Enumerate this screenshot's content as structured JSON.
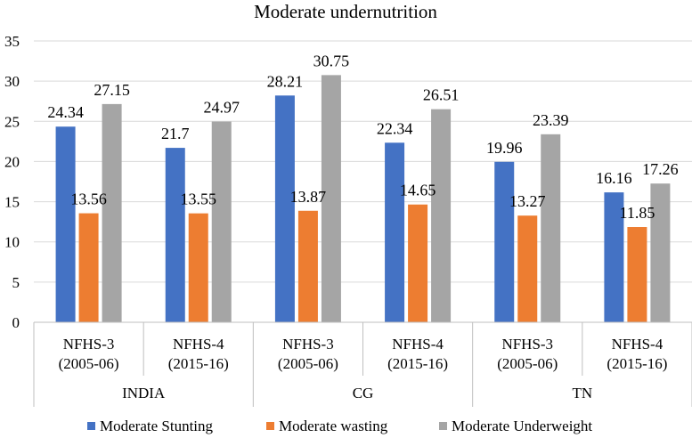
{
  "chart_data": {
    "type": "bar",
    "title": "Moderate undernutrition",
    "xlabel": "",
    "ylabel": "",
    "ylim": [
      0,
      35
    ],
    "yticks": [
      "0",
      "5",
      "10",
      "15",
      "20",
      "25",
      "30",
      "35"
    ],
    "grid": true,
    "legend_position": "bottom",
    "groups": [
      "INDIA",
      "CG",
      "TN"
    ],
    "categories": [
      {
        "line1": "NFHS-3",
        "line2": "(2005-06)",
        "group": "INDIA"
      },
      {
        "line1": "NFHS-4",
        "line2": "(2015-16)",
        "group": "INDIA"
      },
      {
        "line1": "NFHS-3",
        "line2": "(2005-06)",
        "group": "CG"
      },
      {
        "line1": "NFHS-4",
        "line2": "(2015-16)",
        "group": "CG"
      },
      {
        "line1": "NFHS-3",
        "line2": "(2005-06)",
        "group": "TN"
      },
      {
        "line1": "NFHS-4",
        "line2": "(2015-16)",
        "group": "TN"
      }
    ],
    "series": [
      {
        "name": "Moderate Stunting",
        "color": "#4472C4",
        "values": [
          24.34,
          21.7,
          28.21,
          22.34,
          19.96,
          16.16
        ],
        "labels": [
          "24.34",
          "21.7",
          "28.21",
          "22.34",
          "19.96",
          "16.16"
        ]
      },
      {
        "name": "Moderate wasting",
        "color": "#ED7D31",
        "values": [
          13.56,
          13.55,
          13.87,
          14.65,
          13.27,
          11.85
        ],
        "labels": [
          "13.56",
          "13.55",
          "13.87",
          "14.65",
          "13.27",
          "11.85"
        ]
      },
      {
        "name": "Moderate Underweight",
        "color": "#A5A5A5",
        "values": [
          27.15,
          24.97,
          30.75,
          26.51,
          23.39,
          17.26
        ],
        "labels": [
          "27.15",
          "24.97",
          "30.75",
          "26.51",
          "23.39",
          "17.26"
        ]
      }
    ]
  }
}
